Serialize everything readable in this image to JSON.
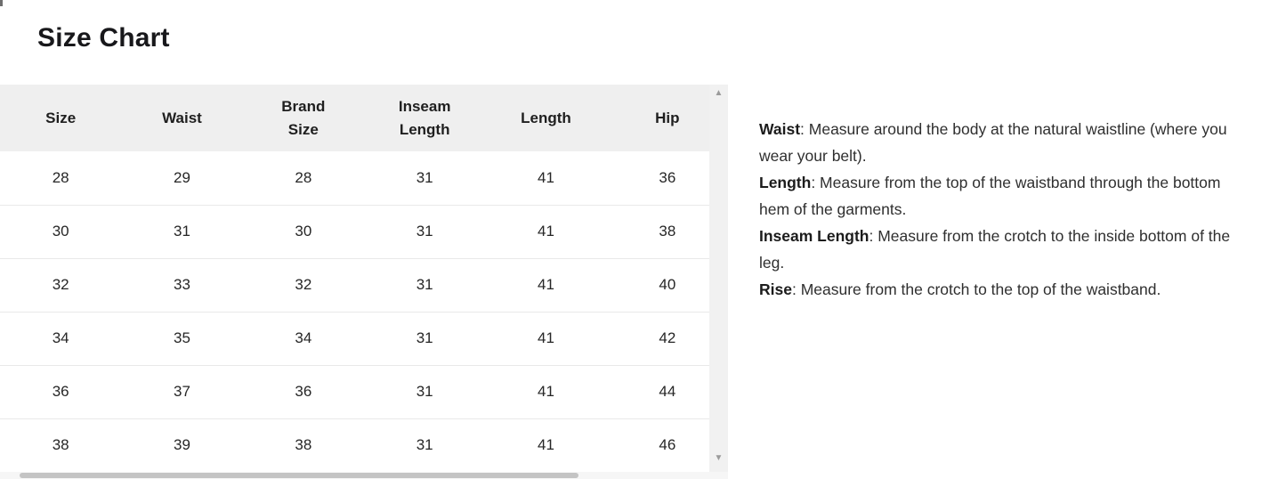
{
  "page": {
    "title": "Size Chart"
  },
  "table": {
    "columns": [
      "Size",
      "Waist",
      "Brand Size",
      "Inseam Length",
      "Length",
      "Hip"
    ],
    "rows": [
      [
        28,
        29,
        28,
        31,
        41,
        36
      ],
      [
        30,
        31,
        30,
        31,
        41,
        38
      ],
      [
        32,
        33,
        32,
        31,
        41,
        40
      ],
      [
        34,
        35,
        34,
        31,
        41,
        42
      ],
      [
        36,
        37,
        36,
        31,
        41,
        44
      ],
      [
        38,
        39,
        38,
        31,
        41,
        46
      ]
    ]
  },
  "instructions": [
    {
      "label": "Waist",
      "text": "Measure around the body at the natural waistline (where you wear your belt)."
    },
    {
      "label": "Length",
      "text": "Measure from the top of the waistband through the bottom hem of the garments."
    },
    {
      "label": "Inseam Length",
      "text": "Measure from the crotch to the inside bottom of the leg."
    },
    {
      "label": "Rise",
      "text": "Measure from the crotch to the top of the waistband."
    }
  ],
  "icons": {
    "scroll_up": "▲",
    "scroll_down": "▼"
  },
  "colors": {
    "header_bg": "#efefef",
    "row_border": "#e9e9e9",
    "cell_text": "#262626",
    "title_color": "#18181b",
    "scroll_track": "#f1f1f1",
    "scroll_arrow": "#9b9b9b",
    "hscroll_track": "#f6f6f6",
    "hscroll_thumb": "#c4c4c4",
    "info_text": "#2f2f2f",
    "info_label": "#1c1c1c"
  }
}
